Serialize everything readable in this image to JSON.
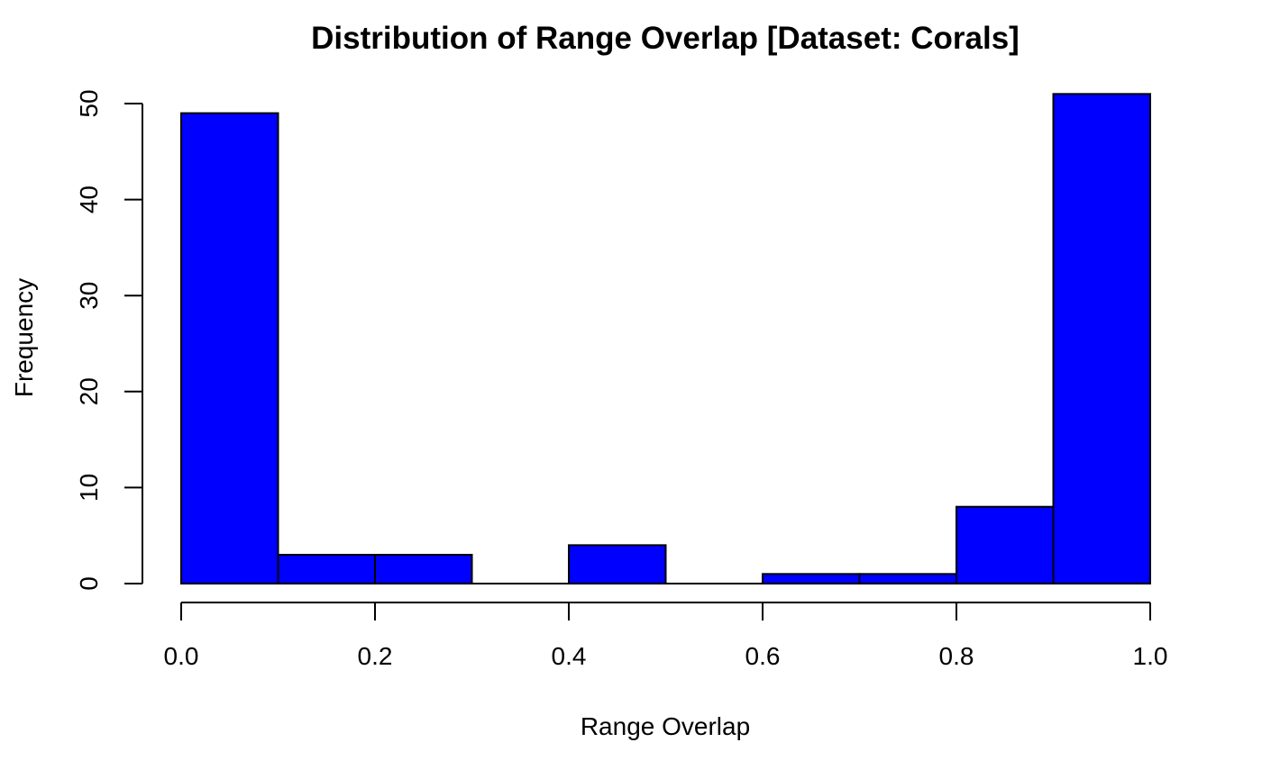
{
  "chart_data": {
    "type": "bar",
    "title": "Distribution of Range Overlap [Dataset: Corals]",
    "xlabel": "Range Overlap",
    "ylabel": "Frequency",
    "bins": [
      {
        "x0": 0.0,
        "x1": 0.1,
        "value": 49
      },
      {
        "x0": 0.1,
        "x1": 0.2,
        "value": 3
      },
      {
        "x0": 0.2,
        "x1": 0.3,
        "value": 3
      },
      {
        "x0": 0.3,
        "x1": 0.4,
        "value": 0
      },
      {
        "x0": 0.4,
        "x1": 0.5,
        "value": 4
      },
      {
        "x0": 0.5,
        "x1": 0.6,
        "value": 0
      },
      {
        "x0": 0.6,
        "x1": 0.7,
        "value": 1
      },
      {
        "x0": 0.7,
        "x1": 0.8,
        "value": 1
      },
      {
        "x0": 0.8,
        "x1": 0.9,
        "value": 8
      },
      {
        "x0": 0.9,
        "x1": 1.0,
        "value": 51
      }
    ],
    "xlim": [
      0,
      1
    ],
    "ylim": [
      0,
      50
    ],
    "xticks": [
      "0.0",
      "0.2",
      "0.4",
      "0.6",
      "0.8",
      "1.0"
    ],
    "yticks": [
      "0",
      "10",
      "20",
      "30",
      "40",
      "50"
    ],
    "bar_color": "#0000ff",
    "border_color": "#000000",
    "grid": false
  }
}
